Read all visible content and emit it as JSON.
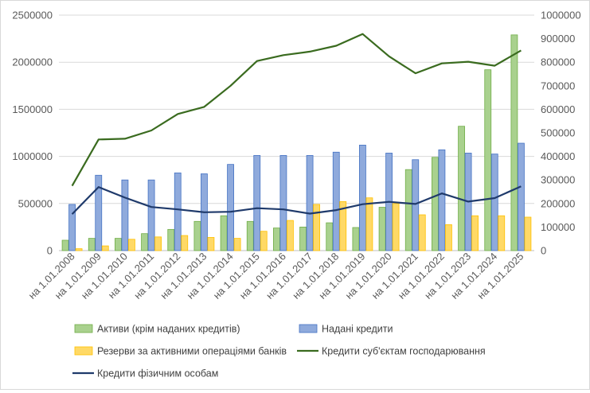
{
  "chart_data": {
    "type": "bar",
    "categories": [
      "на 1.01.2008",
      "на 1.01.2009",
      "на 1.01.2010",
      "на 1.01.2011",
      "на 1.01.2012",
      "на 1.01.2013",
      "на 1.01.2014",
      "на 1.01.2015",
      "на 1.01.2016",
      "на 1.01.2017",
      "на 1.01.2018",
      "на 1.01.2019",
      "на 1.01.2020",
      "на 1.01.2021",
      "на 1.01.2022",
      "на 1.01.2023",
      "на 1.01.2024",
      "на 1.01.2025"
    ],
    "y_left": {
      "min": 0,
      "max": 2500000,
      "ticks": [
        "0",
        "500000",
        "1000000",
        "1500000",
        "2000000",
        "2500000"
      ]
    },
    "y_right": {
      "min": 0,
      "max": 1000000,
      "ticks": [
        "0",
        "100000",
        "200000",
        "300000",
        "400000",
        "500000",
        "600000",
        "700000",
        "800000",
        "900000",
        "1000000"
      ]
    },
    "gridlines": true,
    "legend_position": "bottom",
    "series": [
      {
        "name": "Активи (крім наданих кредитів)",
        "kind": "bar",
        "axis": "left",
        "color": "#a9d18e",
        "stroke": "#70ad47",
        "values": [
          110000,
          130000,
          130000,
          180000,
          225000,
          310000,
          370000,
          310000,
          240000,
          250000,
          295000,
          245000,
          460000,
          860000,
          990000,
          1320000,
          1920000,
          2290000
        ]
      },
      {
        "name": "Надані кредити",
        "kind": "bar",
        "axis": "left",
        "color": "#8faadc",
        "stroke": "#4472c4",
        "values": [
          490000,
          800000,
          750000,
          750000,
          825000,
          815000,
          915000,
          1010000,
          1010000,
          1010000,
          1045000,
          1120000,
          1035000,
          965000,
          1070000,
          1035000,
          1025000,
          1140000
        ]
      },
      {
        "name": "Резерви за активними операціями банків",
        "kind": "bar",
        "axis": "left",
        "color": "#ffd966",
        "stroke": "#ffc000",
        "values": [
          20000,
          50000,
          120000,
          145000,
          160000,
          140000,
          130000,
          205000,
          320000,
          490000,
          520000,
          560000,
          500000,
          380000,
          275000,
          370000,
          370000,
          355000
        ]
      },
      {
        "name": "Кредити суб'єктам господарювання",
        "kind": "line",
        "axis": "right",
        "color": "#3a6b1f",
        "values": [
          275000,
          472000,
          475000,
          510000,
          580000,
          610000,
          700000,
          805000,
          830000,
          845000,
          870000,
          920000,
          825000,
          753000,
          795000,
          802000,
          785000,
          850000
        ]
      },
      {
        "name": "Кредити фізичним особам",
        "kind": "line",
        "axis": "right",
        "color": "#1f3a6b",
        "values": [
          155000,
          270000,
          225000,
          185000,
          175000,
          163000,
          165000,
          180000,
          175000,
          157000,
          172000,
          197000,
          207000,
          198000,
          243000,
          208000,
          223000,
          273000
        ]
      }
    ]
  }
}
